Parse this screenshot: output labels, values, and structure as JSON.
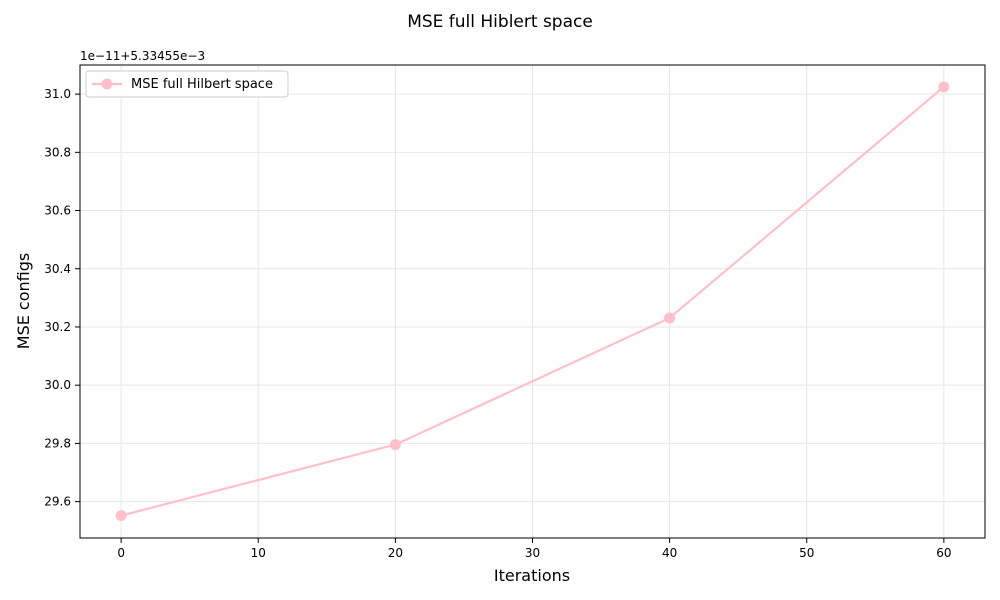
{
  "chart_data": {
    "type": "line",
    "title": "MSE full Hiblert space",
    "xlabel": "Iterations",
    "ylabel": "MSE configs",
    "offset_label": "1e−11+5.33455e−3",
    "legend_placement": "top-left",
    "grid": true,
    "xlim": [
      -3,
      63
    ],
    "ylim": [
      29.475,
      31.1
    ],
    "x_ticks": [
      0,
      10,
      20,
      30,
      40,
      50,
      60
    ],
    "x_tick_labels": [
      "0",
      "10",
      "20",
      "30",
      "40",
      "50",
      "60"
    ],
    "y_ticks": [
      29.6,
      29.8,
      30.0,
      30.2,
      30.4,
      30.6,
      30.8,
      31.0
    ],
    "y_tick_labels": [
      "29.6",
      "29.8",
      "30.0",
      "30.2",
      "30.4",
      "30.6",
      "30.8",
      "31.0"
    ],
    "series": [
      {
        "name": "MSE full Hilbert space",
        "color": "#ffc0cb",
        "marker": "circle",
        "x": [
          0,
          20,
          40,
          60
        ],
        "y": [
          29.552,
          29.796,
          30.231,
          31.025
        ]
      }
    ]
  }
}
